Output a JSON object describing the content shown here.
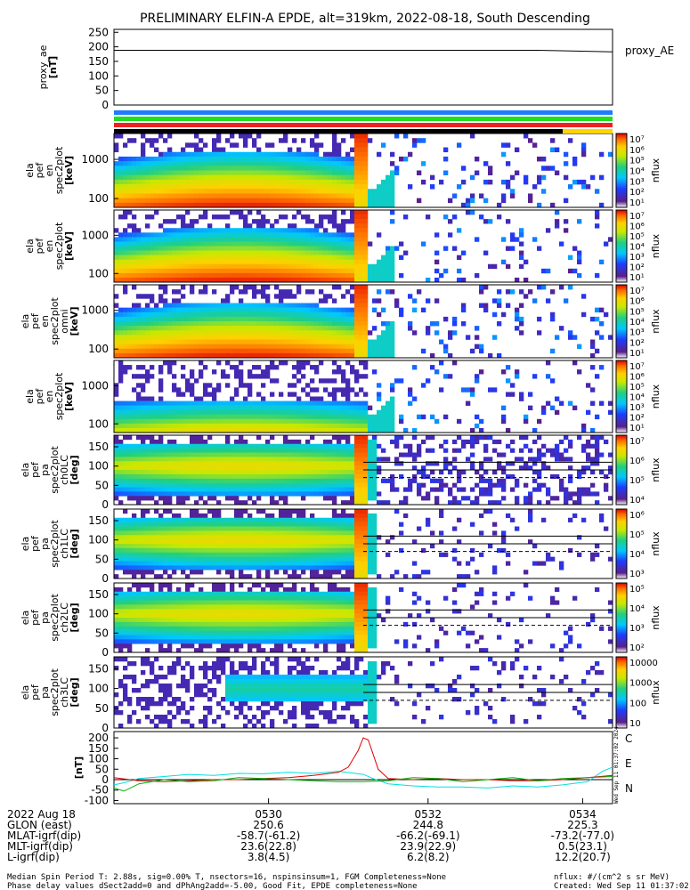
{
  "title": "PRELIMINARY ELFIN-A EPDE, alt=319km, 2022-08-18, South Descending",
  "chart_data": {
    "type": "heatmap",
    "time_axis": {
      "ticks": [
        "0530",
        "0532",
        "0534"
      ],
      "start_label": "2022 Aug 18",
      "rows": [
        {
          "label": "GLON (east)",
          "values": [
            "250.6",
            "244.8",
            "225.3"
          ]
        },
        {
          "label": "MLAT-igrf(dip)",
          "values": [
            "-58.7(-61.2)",
            "-66.2(-69.1)",
            "-73.2(-77.0)"
          ]
        },
        {
          "label": "MLT-igrf(dip)",
          "values": [
            "23.6(22.8)",
            "23.9(22.9)",
            "0.5(23.1)"
          ]
        },
        {
          "label": "L-igrf(dip)",
          "values": [
            "3.8(4.5)",
            "6.2(8.2)",
            "12.2(20.7)"
          ]
        }
      ]
    },
    "panels": [
      {
        "id": "proxy_ae",
        "ylabel": [
          "proxy_ae",
          "[nT]"
        ],
        "yticks": [
          "250",
          "200",
          "150",
          "100",
          "50",
          "0"
        ],
        "ytick_values": [
          250,
          200,
          150,
          100,
          50,
          0
        ],
        "ylim": [
          0,
          260
        ],
        "legend": "proxy_AE",
        "series": [
          {
            "name": "proxy_AE",
            "x": [
              0,
              0.85,
              1.0
            ],
            "y": [
              188,
              188,
              183
            ]
          }
        ]
      },
      {
        "id": "en0",
        "kind": "energy",
        "ylabel": [
          "ela",
          "pef",
          "en",
          "spec2plot",
          "[keV]"
        ],
        "yticks": [
          "1000",
          "100"
        ],
        "cbar": {
          "label": "nflux",
          "ticks": [
            "10⁷",
            "10⁶",
            "10⁵",
            "10⁴",
            "10³",
            "10²",
            "10¹"
          ]
        }
      },
      {
        "id": "en1",
        "kind": "energy",
        "ylabel": [
          "ela",
          "pef",
          "en",
          "spec2plot",
          "[keV]"
        ],
        "yticks": [
          "1000",
          "100"
        ],
        "cbar": {
          "label": "nflux",
          "ticks": [
            "10⁷",
            "10⁶",
            "10⁵",
            "10⁴",
            "10³",
            "10²",
            "10¹"
          ]
        }
      },
      {
        "id": "en2",
        "kind": "energy",
        "ylabel": [
          "ela",
          "pef",
          "en",
          "spec2plot",
          "omni",
          "[keV]"
        ],
        "yticks": [
          "1000",
          "100"
        ],
        "cbar": {
          "label": "nflux",
          "ticks": [
            "10⁷",
            "10⁶",
            "10⁵",
            "10⁴",
            "10³",
            "10²",
            "10¹"
          ]
        }
      },
      {
        "id": "en3",
        "kind": "energy",
        "ylabel": [
          "ela",
          "pef",
          "en",
          "spec2plot",
          "[keV]"
        ],
        "yticks": [
          "1000",
          "100"
        ],
        "cbar": {
          "label": "nflux",
          "ticks": [
            "10⁷",
            "10⁶",
            "10⁵",
            "10⁴",
            "10³",
            "10²",
            "10¹"
          ]
        }
      },
      {
        "id": "pa0",
        "kind": "pitch",
        "ylabel": [
          "ela",
          "pef",
          "pa",
          "spec2plot",
          "ch0LC",
          "[deg]"
        ],
        "yticks": [
          "150",
          "100",
          "50",
          "0"
        ],
        "cbar": {
          "label": "nflux",
          "ticks": [
            "10⁷",
            "10⁶",
            "10⁵",
            "10⁴"
          ]
        }
      },
      {
        "id": "pa1",
        "kind": "pitch",
        "ylabel": [
          "ela",
          "pef",
          "pa",
          "spec2plot",
          "ch1LC",
          "[deg]"
        ],
        "yticks": [
          "150",
          "100",
          "50",
          "0"
        ],
        "cbar": {
          "label": "nflux",
          "ticks": [
            "10⁶",
            "10⁵",
            "10⁴",
            "10³"
          ]
        }
      },
      {
        "id": "pa2",
        "kind": "pitch",
        "ylabel": [
          "ela",
          "pef",
          "pa",
          "spec2plot",
          "ch2LC",
          "[deg]"
        ],
        "yticks": [
          "150",
          "100",
          "50",
          "0"
        ],
        "cbar": {
          "label": "nflux",
          "ticks": [
            "10⁵",
            "10⁴",
            "10³",
            "10²"
          ]
        }
      },
      {
        "id": "pa3",
        "kind": "pitch",
        "ylabel": [
          "ela",
          "pef",
          "pa",
          "spec2plot",
          "ch3LC",
          "[deg]"
        ],
        "yticks": [
          "150",
          "100",
          "50",
          "0"
        ],
        "cbar": {
          "label": "nflux",
          "ticks": [
            "10000",
            "1000",
            "100",
            "10"
          ]
        }
      },
      {
        "id": "fgm",
        "ylabel": [
          "[nT]"
        ],
        "yticks": [
          "200",
          "150",
          "100",
          "50",
          "0",
          "-50",
          "-100"
        ],
        "ytick_values": [
          200,
          150,
          100,
          50,
          0,
          -50,
          -100
        ],
        "ylim": [
          -115,
          230
        ],
        "legend": [
          "C",
          "E",
          "N"
        ],
        "series": [
          {
            "name": "C",
            "color": "#00e0e0",
            "x": [
              0,
              0.02,
              0.05,
              0.1,
              0.15,
              0.2,
              0.25,
              0.3,
              0.35,
              0.4,
              0.45,
              0.5,
              0.52,
              0.55,
              0.6,
              0.65,
              0.7,
              0.75,
              0.8,
              0.85,
              0.9,
              0.95,
              0.98,
              1.0
            ],
            "y": [
              -25,
              -15,
              5,
              15,
              25,
              20,
              30,
              28,
              35,
              30,
              40,
              25,
              5,
              -20,
              -30,
              -35,
              -35,
              -40,
              -30,
              -35,
              -25,
              -10,
              40,
              60
            ]
          },
          {
            "name": "E",
            "color": "#e00000",
            "x": [
              0,
              0.05,
              0.1,
              0.15,
              0.2,
              0.25,
              0.3,
              0.35,
              0.4,
              0.45,
              0.47,
              0.49,
              0.5,
              0.51,
              0.52,
              0.53,
              0.55,
              0.6,
              0.65,
              0.7,
              0.75,
              0.8,
              0.85,
              0.9,
              0.95,
              1.0
            ],
            "y": [
              10,
              -5,
              -10,
              -5,
              0,
              0,
              5,
              10,
              20,
              35,
              60,
              140,
              200,
              190,
              120,
              50,
              5,
              0,
              5,
              0,
              0,
              -5,
              -5,
              0,
              10,
              20
            ]
          },
          {
            "name": "N",
            "color": "#00b000",
            "x": [
              0,
              0.02,
              0.05,
              0.1,
              0.15,
              0.2,
              0.25,
              0.3,
              0.35,
              0.4,
              0.45,
              0.5,
              0.55,
              0.6,
              0.65,
              0.7,
              0.75,
              0.8,
              0.85,
              0.9,
              0.95,
              1.0
            ],
            "y": [
              -40,
              -55,
              -20,
              0,
              -10,
              -5,
              10,
              5,
              0,
              -5,
              -10,
              -10,
              -5,
              10,
              5,
              -10,
              0,
              10,
              -5,
              5,
              10,
              15
            ]
          }
        ]
      }
    ]
  },
  "footer": {
    "left1": "Median Spin Period T: 2.88s, sig=0.00% T, nsectors=16, nspinsinsum=1, FGM Completeness=None",
    "left2": "Phase delay values dSect2add=0 and dPhAng2add=-5.00, Good Fit, EPDE completeness=None",
    "right1": "nflux: #/(cm^2 s sr MeV)",
    "right2": "Created: Wed Sep 11 01:37:02 2024",
    "side_stamp": "Wed Sep 11 01:37:02 2024"
  },
  "colors": {
    "bar_blue": "#1f7bff",
    "bar_green": "#22dd22",
    "bar_red": "#ee2222",
    "bar_black": "#000000",
    "bar_yellow": "#ffd400"
  }
}
